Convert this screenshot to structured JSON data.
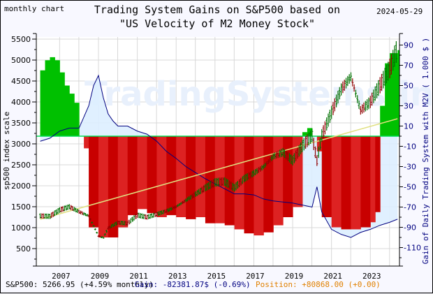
{
  "header": {
    "chart_type": "monthly chart",
    "title_line1": "Trading System Gains on S&P500 based on",
    "title_line2": "\"US Velocity of M2 Money Stock\"",
    "date": "2024-05-29"
  },
  "footer": {
    "sp500": "S&P500: 5266.95 (+4.59% monthly)",
    "gain": "Gain: -82381.87$ (-0.69%)",
    "position": "Position: +80868.00 (+0.00)"
  },
  "colors": {
    "gain_positive": "#00c000",
    "gain_positive_light": "#00dd55",
    "gain_negative": "#c80000",
    "gain_negative_light": "#dd2222",
    "m2v_fill": "#ddeeff",
    "m2v_line": "#000080",
    "candle_up": "#007000",
    "candle_down": "#900000",
    "trend_line": "#e0e080",
    "grid": "#d8d8d8",
    "right_axis_text": "#000080"
  },
  "chart_data": {
    "type": "bar",
    "title": "Trading System Gains on S&P500 based on \"US Velocity of M2 Money Stock\"",
    "xlabel": "",
    "ylabel_left": "sp500 index scale",
    "ylabel_right": "Gain of Daily Trading System with M2V ( 1.000 $ )",
    "x_ticks": [
      "2007",
      "2009",
      "2011",
      "2013",
      "2015",
      "2017",
      "2019",
      "2021",
      "2023"
    ],
    "y_left_ticks": [
      500,
      1000,
      1500,
      2000,
      2500,
      3000,
      3500,
      4000,
      4500,
      5000,
      5500
    ],
    "y_right_ticks": [
      90,
      70,
      50,
      30,
      10,
      -10,
      -30,
      -50,
      -70,
      -90,
      -110
    ],
    "ylim_left": [
      0,
      5600
    ],
    "ylim_right": [
      -125,
      95
    ],
    "grid": true,
    "series": [
      {
        "name": "Trading system gain (1000 $)",
        "type": "step-area",
        "x": [
          2006.0,
          2006.25,
          2006.5,
          2006.75,
          2007.0,
          2007.25,
          2007.5,
          2007.75,
          2008.0,
          2008.25,
          2008.5,
          2009.0,
          2009.5,
          2010.0,
          2010.5,
          2011.0,
          2011.5,
          2012.0,
          2012.5,
          2013.0,
          2013.5,
          2014.0,
          2014.5,
          2015.0,
          2015.5,
          2016.0,
          2016.5,
          2017.0,
          2017.5,
          2018.0,
          2018.5,
          2019.0,
          2019.5,
          2019.75,
          2020.0,
          2020.25,
          2020.5,
          2021.0,
          2021.5,
          2022.0,
          2022.5,
          2023.0,
          2023.25,
          2023.5,
          2023.75,
          2024.0,
          2024.4
        ],
        "values": [
          65,
          75,
          78,
          75,
          63,
          50,
          42,
          33,
          0,
          -12,
          -90,
          -100,
          -100,
          -90,
          -78,
          -72,
          -76,
          -80,
          -78,
          -80,
          -82,
          -80,
          -86,
          -86,
          -88,
          -92,
          -96,
          -98,
          -95,
          -88,
          -80,
          -70,
          4,
          8,
          0,
          -15,
          -80,
          -90,
          -92,
          -92,
          -90,
          -85,
          -75,
          30,
          72,
          82,
          85
        ]
      },
      {
        "name": "US Velocity of M2 (scaled)",
        "type": "line",
        "x": [
          2006.0,
          2006.5,
          2007.0,
          2007.5,
          2008.0,
          2008.5,
          2008.75,
          2009.0,
          2009.25,
          2009.5,
          2009.75,
          2010.0,
          2010.5,
          2011.0,
          2011.5,
          2012.0,
          2012.5,
          2013.0,
          2013.5,
          2014.0,
          2014.5,
          2015.0,
          2015.5,
          2016.0,
          2016.5,
          2017.0,
          2017.5,
          2018.0,
          2018.5,
          2019.0,
          2019.5,
          2020.0,
          2020.25,
          2020.5,
          2021.0,
          2021.5,
          2022.0,
          2022.5,
          2023.0,
          2023.5,
          2024.0,
          2024.4
        ],
        "values": [
          -5,
          -2,
          5,
          8,
          8,
          30,
          50,
          60,
          38,
          22,
          15,
          10,
          10,
          5,
          2,
          -5,
          -15,
          -22,
          -30,
          -36,
          -42,
          -47,
          -52,
          -57,
          -57,
          -58,
          -62,
          -64,
          -65,
          -66,
          -68,
          -70,
          -50,
          -75,
          -92,
          -97,
          -100,
          -95,
          -92,
          -88,
          -85,
          -82
        ]
      },
      {
        "name": "S&P500 (monthly)",
        "type": "candlestick",
        "x": [
          2006.0,
          2006.5,
          2007.0,
          2007.5,
          2008.0,
          2008.5,
          2009.0,
          2009.25,
          2009.5,
          2010.0,
          2010.5,
          2011.0,
          2011.5,
          2012.0,
          2012.5,
          2013.0,
          2013.5,
          2014.0,
          2014.5,
          2015.0,
          2015.5,
          2016.0,
          2016.5,
          2017.0,
          2017.5,
          2018.0,
          2018.5,
          2019.0,
          2019.5,
          2020.0,
          2020.25,
          2020.5,
          2021.0,
          2021.5,
          2022.0,
          2022.5,
          2023.0,
          2023.5,
          2024.0,
          2024.4
        ],
        "values": [
          1280,
          1270,
          1420,
          1500,
          1380,
          1280,
          800,
          760,
          990,
          1120,
          1100,
          1300,
          1250,
          1320,
          1400,
          1500,
          1650,
          1800,
          1950,
          2080,
          2100,
          1950,
          2170,
          2300,
          2450,
          2700,
          2800,
          2600,
          2950,
          3200,
          2600,
          3200,
          3750,
          4300,
          4600,
          3800,
          4000,
          4400,
          4800,
          5270
        ]
      },
      {
        "name": "S&P500 trend",
        "type": "line",
        "x": [
          2006.0,
          2024.4
        ],
        "values": [
          1200,
          3600
        ]
      }
    ]
  }
}
